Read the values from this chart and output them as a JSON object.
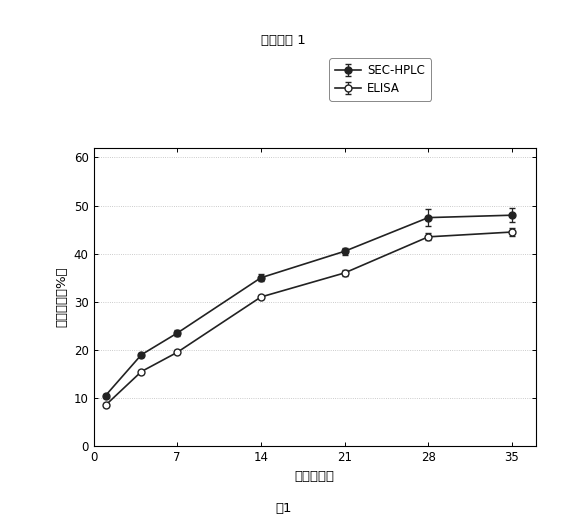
{
  "title": "製劑番号 1",
  "xlabel": "時間（日）",
  "ylabel": "累積放出（%）",
  "caption": "図1",
  "xlim": [
    0,
    37
  ],
  "ylim": [
    0,
    62
  ],
  "xticks": [
    0,
    7,
    14,
    21,
    28,
    35
  ],
  "yticks": [
    0,
    10,
    20,
    30,
    40,
    50,
    60
  ],
  "series": [
    {
      "label": "SEC-HPLC",
      "x": [
        1,
        4,
        7,
        14,
        21,
        28,
        35
      ],
      "y": [
        10.5,
        19.0,
        23.5,
        35.0,
        40.5,
        47.5,
        48.0
      ],
      "yerr": [
        0.4,
        0.4,
        0.7,
        0.7,
        0.7,
        1.8,
        1.5
      ],
      "marker": "o",
      "fillstyle": "full",
      "color": "#222222",
      "markersize": 5,
      "linewidth": 1.2
    },
    {
      "label": "ELISA",
      "x": [
        1,
        4,
        7,
        14,
        21,
        28,
        35
      ],
      "y": [
        8.5,
        15.5,
        19.5,
        31.0,
        36.0,
        43.5,
        44.5
      ],
      "yerr": [
        0.4,
        0.4,
        0.4,
        0.4,
        0.7,
        0.7,
        0.8
      ],
      "marker": "o",
      "fillstyle": "none",
      "color": "#222222",
      "markersize": 5,
      "linewidth": 1.2
    }
  ],
  "background_color": "#ffffff",
  "grid_color": "#bbbbbb"
}
